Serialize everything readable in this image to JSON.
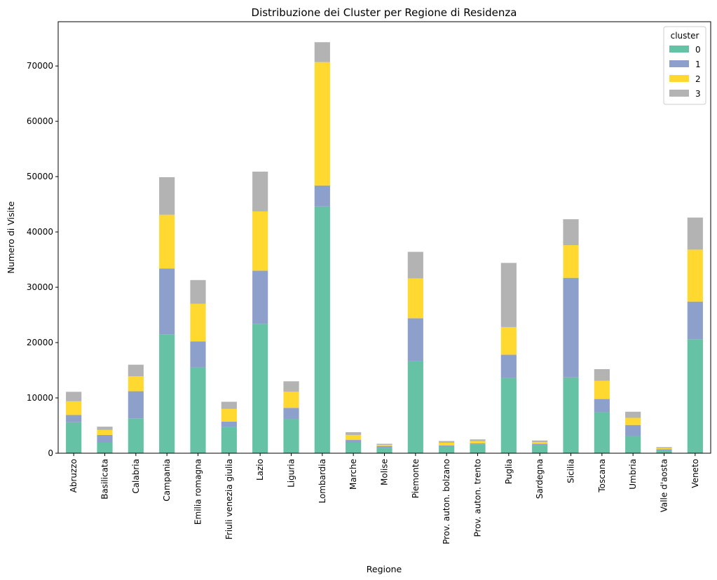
{
  "chart_data": {
    "type": "bar",
    "stacked": true,
    "title": "Distribuzione dei Cluster per Regione di Residenza",
    "xlabel": "Regione",
    "ylabel": "Numero di Visite",
    "ylim": [
      0,
      78000
    ],
    "yticks": [
      0,
      10000,
      20000,
      30000,
      40000,
      50000,
      60000,
      70000
    ],
    "grid": false,
    "legend": {
      "title": "cluster",
      "placement": "top-right"
    },
    "categories": [
      "Abruzzo",
      "Basilicata",
      "Calabria",
      "Campania",
      "Emilia romagna",
      "Friuli venezia giulia",
      "Lazio",
      "Liguria",
      "Lombardia",
      "Marche",
      "Molise",
      "Piemonte",
      "Prov. auton. bolzano",
      "Prov. auton. trento",
      "Puglia",
      "Sardegna",
      "Sicilia",
      "Toscana",
      "Umbria",
      "Valle d'aosta",
      "Veneto"
    ],
    "series": [
      {
        "name": "0",
        "color": "#66c2a5",
        "values": [
          5600,
          1900,
          6300,
          21500,
          15500,
          4700,
          23400,
          6200,
          44600,
          1900,
          1000,
          16600,
          1200,
          1600,
          13600,
          1400,
          13700,
          7400,
          3100,
          500,
          20600
        ]
      },
      {
        "name": "1",
        "color": "#8da0cb",
        "values": [
          1300,
          1400,
          4900,
          11900,
          4700,
          1000,
          9600,
          2000,
          3800,
          500,
          300,
          7800,
          200,
          200,
          4200,
          300,
          18000,
          2400,
          2000,
          200,
          6800
        ]
      },
      {
        "name": "2",
        "color": "#ffd92f",
        "values": [
          2500,
          900,
          2700,
          9700,
          6800,
          2300,
          10700,
          2900,
          22300,
          900,
          200,
          7200,
          500,
          400,
          5000,
          300,
          5900,
          3300,
          1300,
          200,
          9400
        ]
      },
      {
        "name": "3",
        "color": "#b3b3b3",
        "values": [
          1700,
          600,
          2100,
          6800,
          4300,
          1300,
          7200,
          1900,
          3600,
          500,
          200,
          4800,
          300,
          300,
          11600,
          300,
          4700,
          2100,
          1100,
          200,
          5800
        ]
      }
    ]
  }
}
